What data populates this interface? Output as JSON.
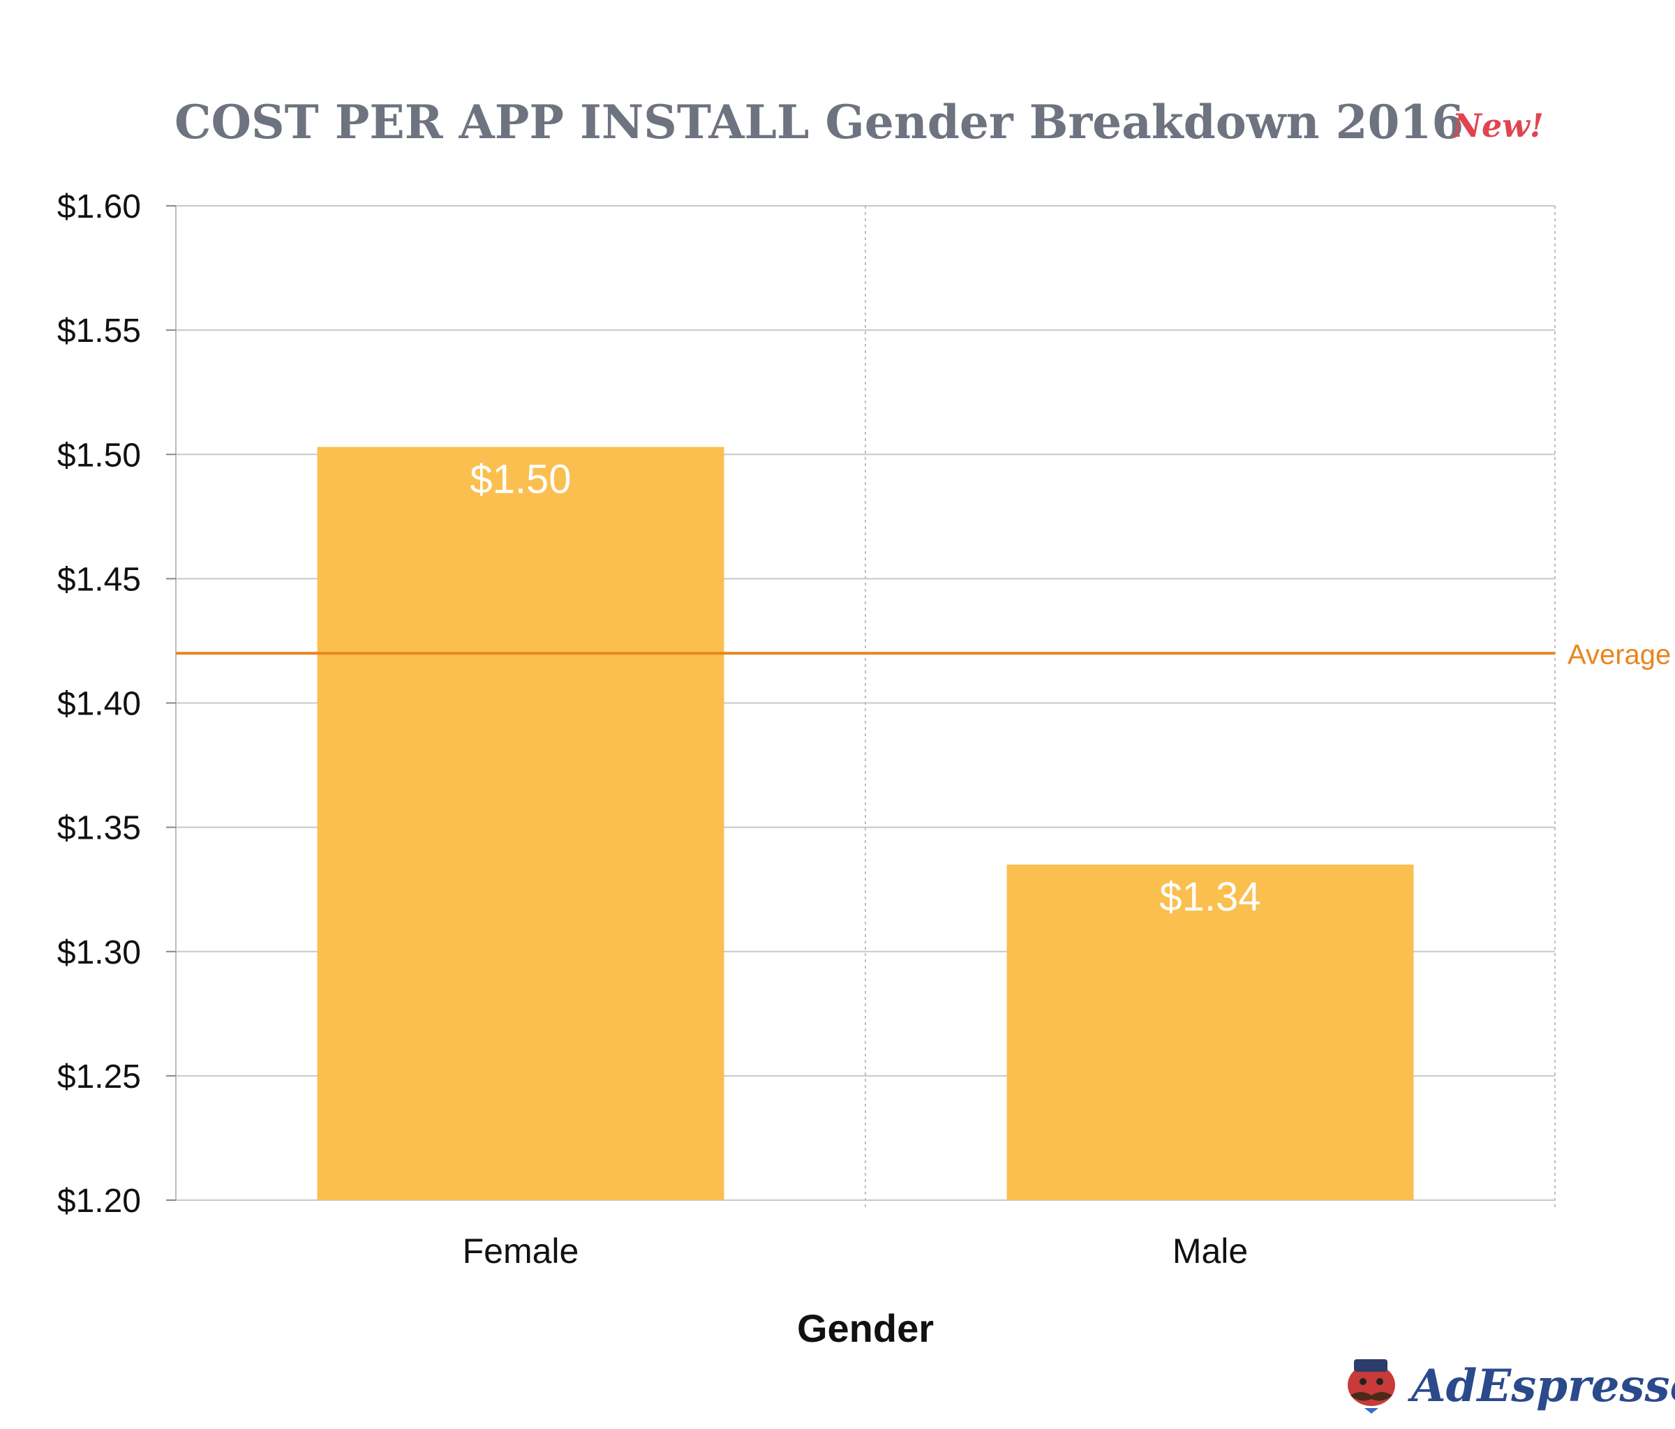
{
  "chart_data": {
    "type": "bar",
    "title": "COST PER APP INSTALL Gender Breakdown 2016",
    "badge": "New!",
    "categories": [
      "Female",
      "Male"
    ],
    "values": [
      1.503,
      1.335
    ],
    "value_labels": [
      "$1.50",
      "$1.34"
    ],
    "xlabel": "Gender",
    "ylabel": "",
    "ylim": [
      1.2,
      1.6
    ],
    "yticks": [
      1.6,
      1.55,
      1.5,
      1.45,
      1.4,
      1.35,
      1.3,
      1.25,
      1.2
    ],
    "ytick_labels": [
      "$1.60",
      "$1.55",
      "$1.50",
      "$1.45",
      "$1.40",
      "$1.35",
      "$1.30",
      "$1.25",
      "$1.20"
    ],
    "reference_line": {
      "label": "Average",
      "value": 1.42
    },
    "grid": true,
    "colors": {
      "bar": "#fbbf4f",
      "average": "#e8851f",
      "title": "#6e7380",
      "badge": "#e0454f",
      "brand": "#2b4a8c"
    }
  },
  "brand": {
    "name": "AdEspresso"
  }
}
